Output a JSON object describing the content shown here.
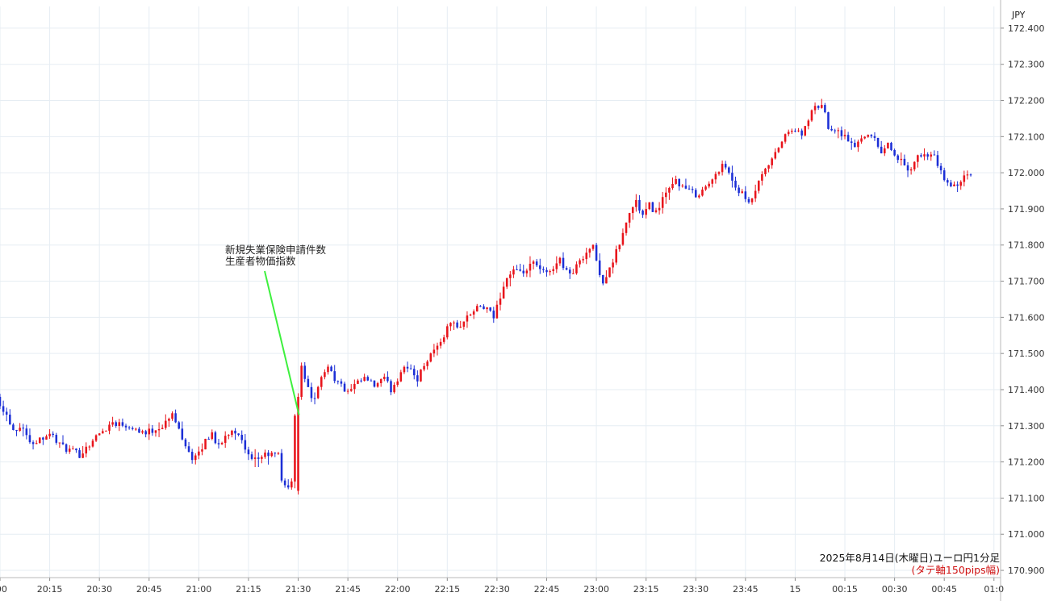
{
  "chart_data": {
    "type": "candlestick",
    "currency_label": "JPY",
    "y_tick_labels": [
      "172.400",
      "172.300",
      "172.200",
      "172.100",
      "172.000",
      "171.900",
      "171.800",
      "171.700",
      "171.600",
      "171.500",
      "171.400",
      "171.300",
      "171.200",
      "171.100",
      "171.000",
      "170.900"
    ],
    "ylim": [
      170.88,
      172.46
    ],
    "grid": true,
    "x_ticks": [
      {
        "label": ":00",
        "t": 0
      },
      {
        "label": "20:15",
        "t": 15
      },
      {
        "label": "20:30",
        "t": 30
      },
      {
        "label": "20:45",
        "t": 45
      },
      {
        "label": "21:00",
        "t": 60
      },
      {
        "label": "21:15",
        "t": 75
      },
      {
        "label": "21:30",
        "t": 90
      },
      {
        "label": "21:45",
        "t": 105
      },
      {
        "label": "22:00",
        "t": 120
      },
      {
        "label": "22:15",
        "t": 135
      },
      {
        "label": "22:30",
        "t": 150
      },
      {
        "label": "22:45",
        "t": 165
      },
      {
        "label": "23:00",
        "t": 180
      },
      {
        "label": "23:15",
        "t": 195
      },
      {
        "label": "23:30",
        "t": 210
      },
      {
        "label": "23:45",
        "t": 225
      },
      {
        "label": "15",
        "t": 240
      },
      {
        "label": "00:15",
        "t": 255
      },
      {
        "label": "00:30",
        "t": 270
      },
      {
        "label": "00:45",
        "t": 285
      },
      {
        "label": "01:0",
        "t": 300
      }
    ],
    "xlim": [
      0,
      302
    ],
    "up_color": "#e8141b",
    "down_color": "#1c2fd6",
    "anchors": [
      [
        0,
        171.38
      ],
      [
        3,
        171.33
      ],
      [
        5,
        171.29
      ],
      [
        8,
        171.3
      ],
      [
        10,
        171.25
      ],
      [
        12,
        171.26
      ],
      [
        16,
        171.28
      ],
      [
        20,
        171.24
      ],
      [
        25,
        171.22
      ],
      [
        30,
        171.27
      ],
      [
        35,
        171.31
      ],
      [
        40,
        171.3
      ],
      [
        45,
        171.28
      ],
      [
        50,
        171.3
      ],
      [
        53,
        171.33
      ],
      [
        55,
        171.29
      ],
      [
        57,
        171.25
      ],
      [
        59,
        171.21
      ],
      [
        61,
        171.22
      ],
      [
        63,
        171.26
      ],
      [
        65,
        171.28
      ],
      [
        67,
        171.24
      ],
      [
        69,
        171.27
      ],
      [
        71,
        171.29
      ],
      [
        73,
        171.28
      ],
      [
        75,
        171.23
      ],
      [
        77,
        171.2
      ],
      [
        79,
        171.21
      ],
      [
        81,
        171.22
      ],
      [
        85,
        171.22
      ],
      [
        86,
        171.15
      ],
      [
        88,
        171.13
      ],
      [
        89,
        171.14
      ],
      [
        90,
        171.33
      ],
      [
        91,
        171.39
      ],
      [
        92,
        171.47
      ],
      [
        94,
        171.4
      ],
      [
        96,
        171.37
      ],
      [
        98,
        171.43
      ],
      [
        100,
        171.47
      ],
      [
        102,
        171.43
      ],
      [
        104,
        171.41
      ],
      [
        106,
        171.39
      ],
      [
        108,
        171.41
      ],
      [
        111,
        171.43
      ],
      [
        114,
        171.41
      ],
      [
        117,
        171.43
      ],
      [
        119,
        171.4
      ],
      [
        121,
        171.43
      ],
      [
        123,
        171.47
      ],
      [
        125,
        171.45
      ],
      [
        127,
        171.43
      ],
      [
        129,
        171.47
      ],
      [
        131,
        171.5
      ],
      [
        133,
        171.52
      ],
      [
        135,
        171.55
      ],
      [
        137,
        171.59
      ],
      [
        139,
        171.57
      ],
      [
        141,
        171.59
      ],
      [
        143,
        171.61
      ],
      [
        146,
        171.63
      ],
      [
        148,
        171.62
      ],
      [
        150,
        171.6
      ],
      [
        152,
        171.66
      ],
      [
        154,
        171.71
      ],
      [
        156,
        171.73
      ],
      [
        158,
        171.72
      ],
      [
        160,
        171.73
      ],
      [
        162,
        171.75
      ],
      [
        164,
        171.73
      ],
      [
        166,
        171.72
      ],
      [
        168,
        171.74
      ],
      [
        170,
        171.76
      ],
      [
        172,
        171.73
      ],
      [
        174,
        171.72
      ],
      [
        176,
        171.76
      ],
      [
        178,
        171.78
      ],
      [
        180,
        171.8
      ],
      [
        181,
        171.75
      ],
      [
        183,
        171.7
      ],
      [
        185,
        171.73
      ],
      [
        187,
        171.78
      ],
      [
        189,
        171.83
      ],
      [
        191,
        171.89
      ],
      [
        193,
        171.92
      ],
      [
        195,
        171.88
      ],
      [
        197,
        171.91
      ],
      [
        199,
        171.89
      ],
      [
        201,
        171.93
      ],
      [
        203,
        171.95
      ],
      [
        205,
        171.98
      ],
      [
        207,
        171.96
      ],
      [
        209,
        171.95
      ],
      [
        211,
        171.94
      ],
      [
        213,
        171.95
      ],
      [
        215,
        171.97
      ],
      [
        217,
        171.99
      ],
      [
        219,
        172.03
      ],
      [
        221,
        172.0
      ],
      [
        223,
        171.96
      ],
      [
        225,
        171.94
      ],
      [
        227,
        171.91
      ],
      [
        229,
        171.95
      ],
      [
        231,
        171.99
      ],
      [
        233,
        172.02
      ],
      [
        235,
        172.05
      ],
      [
        237,
        172.09
      ],
      [
        239,
        172.11
      ],
      [
        241,
        172.12
      ],
      [
        243,
        172.1
      ],
      [
        245,
        172.15
      ],
      [
        247,
        172.18
      ],
      [
        249,
        172.19
      ],
      [
        251,
        172.13
      ],
      [
        253,
        172.12
      ],
      [
        255,
        172.11
      ],
      [
        257,
        172.09
      ],
      [
        259,
        172.07
      ],
      [
        261,
        172.1
      ],
      [
        263,
        172.11
      ],
      [
        265,
        172.09
      ],
      [
        267,
        172.06
      ],
      [
        269,
        172.08
      ],
      [
        271,
        172.05
      ],
      [
        273,
        172.03
      ],
      [
        275,
        172.0
      ],
      [
        277,
        172.03
      ],
      [
        279,
        172.05
      ],
      [
        281,
        172.05
      ],
      [
        283,
        172.04
      ],
      [
        285,
        172.0
      ],
      [
        287,
        171.97
      ],
      [
        289,
        171.96
      ],
      [
        291,
        171.98
      ],
      [
        293,
        171.99
      ]
    ],
    "annotation": {
      "lines": [
        "新規失業保険申請件数",
        "生産者物価指数"
      ],
      "t": 90,
      "price": 171.33
    },
    "caption": {
      "line1": "2025年8月14日(木曜日)ユーロ円1分足",
      "line2": "(タテ軸150pips幅)",
      "line2_color": "#d11414"
    },
    "annotation_line_color": "#3ef03e"
  }
}
